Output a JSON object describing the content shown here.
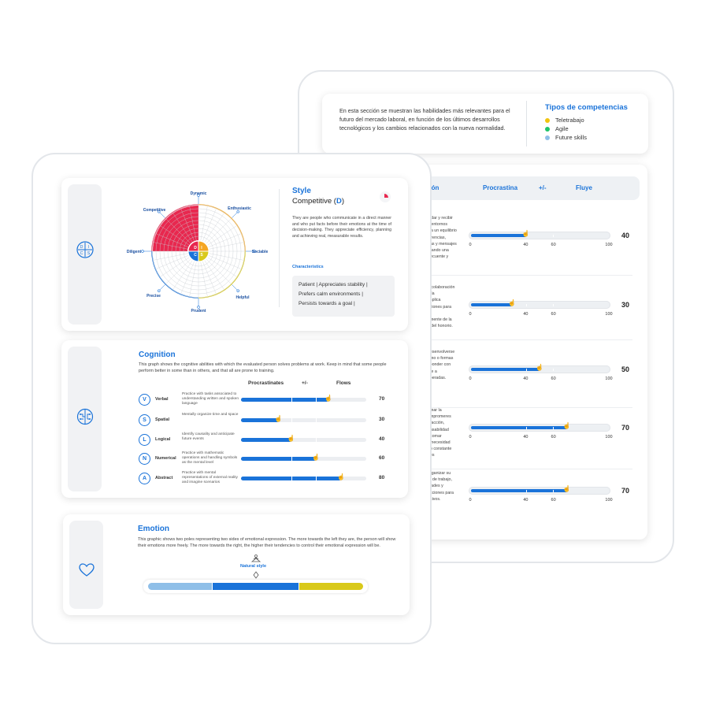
{
  "back_report": {
    "info_text": "En esta sección se muestran las habilidades más relevantes para el futuro del mercado laboral, en función de los últimos desarrollos tecnológicos y los cambios relacionados con la nueva normalidad.",
    "legend_title": "Tipos de competencias",
    "legend": [
      {
        "label": "Teletrabajo",
        "color": "#f1c40f"
      },
      {
        "label": "Agile",
        "color": "#1fc46b"
      },
      {
        "label": "Future skills",
        "color": "#8fbfe8"
      }
    ],
    "table_headers": {
      "col1": "ción",
      "col2": "Procrastina",
      "col3": "+/-",
      "col4": "Fluye"
    },
    "axis_labels": [
      "0",
      "40",
      "60",
      "100"
    ],
    "rows": [
      {
        "desc": [
          "s dar y recibir",
          "n entornos",
          "ica un equilibrio",
          "ferencias,",
          "das y mensajes",
          "urando una",
          "frecuente y"
        ],
        "value": 40,
        "score": "40"
      },
      {
        "desc": [
          "a colaboración",
          "e la",
          "implica",
          "cciones para",
          "",
          "amente de la",
          "y del honorio."
        ],
        "value": 30,
        "score": "30"
      },
      {
        "desc": [
          "desenvolverse",
          "omo o formas",
          "sponder con",
          "nte a",
          "speradas."
        ],
        "value": 50,
        "score": "50"
      },
      {
        "desc": [
          "omar la",
          "ompromeres",
          "e acción,",
          "onsabilidad",
          "y tomar",
          "a necesidad",
          "eo constante",
          "des"
        ],
        "value": 70,
        "score": "70"
      },
      {
        "desc": [
          "organizar su",
          "to de trabajo,",
          "idades y",
          "ecciones para",
          "jetivos."
        ],
        "value": 70,
        "score": "70"
      }
    ]
  },
  "style": {
    "title": "Style",
    "type_prefix": "Competitive (",
    "type_letter": "D",
    "type_suffix": ")",
    "description": "They are people who communicate in a direct manner and who put facts before their emotions at the time of decision-making. They appreciate efficiency, planning and achieving real, measurable results.",
    "characteristics_label": "Characteristics",
    "characteristics": [
      "Patient  |  Appreciates stability  |",
      "Prefers calm environments  |",
      "Persists towards a goal  |"
    ],
    "wheel_labels": [
      "Dynamic",
      "Enthusiastic",
      "Sociable",
      "Helpful",
      "Prudent",
      "Precise",
      "Diligent",
      "Competitive"
    ],
    "quadrants": [
      "D",
      "I",
      "C",
      "S"
    ],
    "colors": {
      "D": "#e8284f",
      "I": "#f5a623",
      "C": "#1a73d9",
      "S": "#d9c91a"
    }
  },
  "cognition": {
    "title": "Cognition",
    "description": "This graph shows the cognitive abilities with which the evaluated person solves problems at work. Keep in mind that some people perform better in some than in others, and that all are prone to training.",
    "headers": {
      "left": "Procrastinates",
      "mid": "+/-",
      "right": "Flows"
    },
    "rows": [
      {
        "letter": "V",
        "label": "Verbal",
        "desc": "Practice with tasks associated to understanding written and spoken language",
        "value": 70,
        "score": "70"
      },
      {
        "letter": "S",
        "label": "Spatial",
        "desc": "Mentally organize time and space",
        "value": 30,
        "score": "30"
      },
      {
        "letter": "L",
        "label": "Logical",
        "desc": "Identify causality and anticipate future events",
        "value": 40,
        "score": "40"
      },
      {
        "letter": "N",
        "label": "Numerical",
        "desc": "Practice with mathematic operations and handling symbols as the mental level",
        "value": 60,
        "score": "60"
      },
      {
        "letter": "A",
        "label": "Abstract",
        "desc": "Practice with mental representations of external reality and imagine scenarios",
        "value": 80,
        "score": "80"
      }
    ]
  },
  "emotion": {
    "title": "Emotion",
    "description": "This graphic shows two poles representing two sides of emotional expression. The more towards the left they are, the person will show their emotions more freely. The more towards the right, the higher their tendencies to control their emotional expression will be.",
    "natural_label": "Natural style",
    "segments": [
      {
        "color": "#8fbfe8",
        "share": 0.3
      },
      {
        "color": "#1a73d9",
        "share": 0.4
      },
      {
        "color": "#d9c91a",
        "share": 0.3
      }
    ]
  }
}
